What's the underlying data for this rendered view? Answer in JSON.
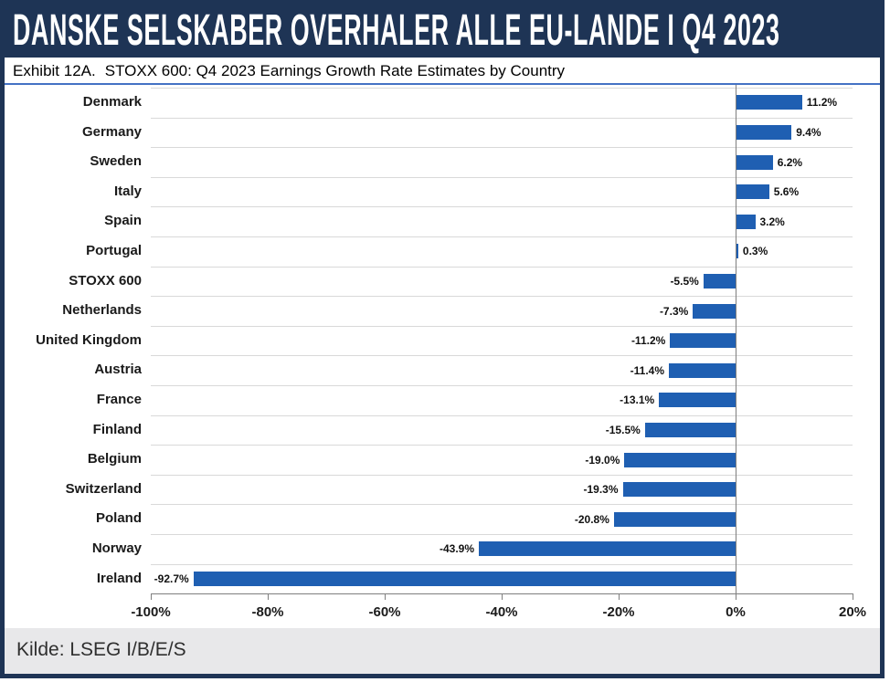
{
  "header": {
    "title": "DANSKE SELSKABER OVERHALER ALLE EU-LANDE I Q4 2023"
  },
  "exhibit": {
    "label": "Exhibit 12A.",
    "title": "STOXX 600: Q4 2023 Earnings Growth Rate Estimates by Country"
  },
  "footer": {
    "source": "Kilde: LSEG I/B/E/S"
  },
  "colors": {
    "banner_navy": "#1E3455",
    "bar_blue": "#1F5FB2",
    "underline_blue": "#4472C4",
    "footer_gray": "#E8E8EA",
    "gridline_gray": "#D9D9D9",
    "axis_gray": "#7F7F7F"
  },
  "chart_data": {
    "type": "bar",
    "orientation": "horizontal",
    "title": "Exhibit 12A.  STOXX 600: Q4 2023 Earnings Growth Rate Estimates by Country",
    "categories": [
      "Denmark",
      "Germany",
      "Sweden",
      "Italy",
      "Spain",
      "Portugal",
      "STOXX 600",
      "Netherlands",
      "United Kingdom",
      "Austria",
      "France",
      "Finland",
      "Belgium",
      "Switzerland",
      "Poland",
      "Norway",
      "Ireland"
    ],
    "values": [
      11.2,
      9.4,
      6.2,
      5.6,
      3.2,
      0.3,
      -5.5,
      -7.3,
      -11.2,
      -11.4,
      -13.1,
      -15.5,
      -19.0,
      -19.3,
      -20.8,
      -43.9,
      -92.7
    ],
    "value_labels": [
      "11.2%",
      "9.4%",
      "6.2%",
      "5.6%",
      "3.2%",
      "0.3%",
      "-5.5%",
      "-7.3%",
      "-11.2%",
      "-11.4%",
      "-13.1%",
      "-15.5%",
      "-19.0%",
      "-19.3%",
      "-20.8%",
      "-43.9%",
      "-92.7%"
    ],
    "xlabel": "",
    "ylabel": "",
    "xlim": [
      -100,
      20
    ],
    "xtick_labels": [
      "-100%",
      "-80%",
      "-60%",
      "-40%",
      "-20%",
      "0%",
      "20%"
    ],
    "grid": true,
    "legend": false,
    "bar_color": "#1F5FB2"
  }
}
